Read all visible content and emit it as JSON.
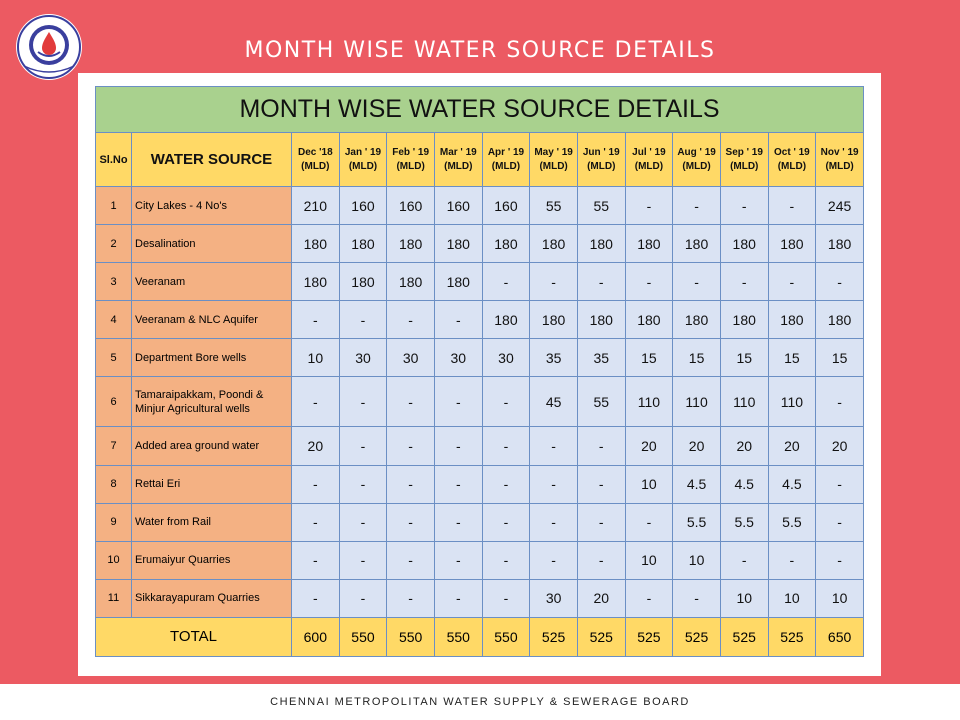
{
  "header": {
    "title": "MONTH WISE WATER SOURCE DETAILS",
    "logo_icon": "cmwssb-logo-icon"
  },
  "table": {
    "title": "MONTH WISE WATER SOURCE DETAILS",
    "col_sl": "Sl.No",
    "col_source": "WATER SOURCE",
    "months": [
      {
        "name": "Dec '18",
        "unit": "(MLD)"
      },
      {
        "name": "Jan ' 19",
        "unit": "(MLD)"
      },
      {
        "name": "Feb ' 19",
        "unit": "(MLD)"
      },
      {
        "name": "Mar ' 19",
        "unit": "(MLD)"
      },
      {
        "name": "Apr ' 19",
        "unit": "(MLD)"
      },
      {
        "name": "May ' 19",
        "unit": "(MLD)"
      },
      {
        "name": "Jun ' 19",
        "unit": "(MLD)"
      },
      {
        "name": "Jul ' 19",
        "unit": "(MLD)"
      },
      {
        "name": "Aug ' 19",
        "unit": "(MLD)"
      },
      {
        "name": "Sep ' 19",
        "unit": "(MLD)"
      },
      {
        "name": "Oct ' 19",
        "unit": "(MLD)"
      },
      {
        "name": "Nov ' 19",
        "unit": "(MLD)"
      }
    ],
    "rows": [
      {
        "sl": "1",
        "source": "City Lakes - 4 No's",
        "values": [
          "210",
          "160",
          "160",
          "160",
          "160",
          "55",
          "55",
          "-",
          "-",
          "-",
          "-",
          "245"
        ]
      },
      {
        "sl": "2",
        "source": "Desalination",
        "values": [
          "180",
          "180",
          "180",
          "180",
          "180",
          "180",
          "180",
          "180",
          "180",
          "180",
          "180",
          "180"
        ]
      },
      {
        "sl": "3",
        "source": "Veeranam",
        "values": [
          "180",
          "180",
          "180",
          "180",
          "-",
          "-",
          "-",
          "-",
          "-",
          "-",
          "-",
          "-"
        ]
      },
      {
        "sl": "4",
        "source": "Veeranam & NLC Aquifer",
        "values": [
          "-",
          "-",
          "-",
          "-",
          "180",
          "180",
          "180",
          "180",
          "180",
          "180",
          "180",
          "180"
        ]
      },
      {
        "sl": "5",
        "source": "Department Bore wells",
        "values": [
          "10",
          "30",
          "30",
          "30",
          "30",
          "35",
          "35",
          "15",
          "15",
          "15",
          "15",
          "15"
        ]
      },
      {
        "sl": "6",
        "source": "Tamaraipakkam, Poondi & Minjur Agricultural wells",
        "values": [
          "-",
          "-",
          "-",
          "-",
          "-",
          "45",
          "55",
          "110",
          "110",
          "110",
          "110",
          "-"
        ]
      },
      {
        "sl": "7",
        "source": "Added area ground water",
        "values": [
          "20",
          "-",
          "-",
          "-",
          "-",
          "-",
          "-",
          "20",
          "20",
          "20",
          "20",
          "20"
        ]
      },
      {
        "sl": "8",
        "source": "Rettai Eri",
        "values": [
          "-",
          "-",
          "-",
          "-",
          "-",
          "-",
          "-",
          "10",
          "4.5",
          "4.5",
          "4.5",
          "-"
        ]
      },
      {
        "sl": "9",
        "source": "Water from Rail",
        "values": [
          "-",
          "-",
          "-",
          "-",
          "-",
          "-",
          "-",
          "-",
          "5.5",
          "5.5",
          "5.5",
          "-"
        ]
      },
      {
        "sl": "10",
        "source": "Erumaiyur Quarries",
        "values": [
          "-",
          "-",
          "-",
          "-",
          "-",
          "-",
          "-",
          "10",
          "10",
          "-",
          "-",
          "-"
        ]
      },
      {
        "sl": "11",
        "source": "Sikkarayapuram Quarries",
        "values": [
          "-",
          "-",
          "-",
          "-",
          "-",
          "30",
          "20",
          "-",
          "-",
          "10",
          "10",
          "10"
        ]
      }
    ],
    "total_label": "TOTAL",
    "totals": [
      "600",
      "550",
      "550",
      "550",
      "550",
      "525",
      "525",
      "525",
      "525",
      "525",
      "525",
      "650"
    ]
  },
  "footer": {
    "text": "CHENNAI METROPOLITAN WATER SUPPLY & SEWERAGE BOARD"
  },
  "colors": {
    "background": "#ec5a62",
    "title_band": "#a9d18e",
    "header_band": "#ffd966",
    "source_column": "#f4b183",
    "value_cells": "#dae3f3"
  }
}
